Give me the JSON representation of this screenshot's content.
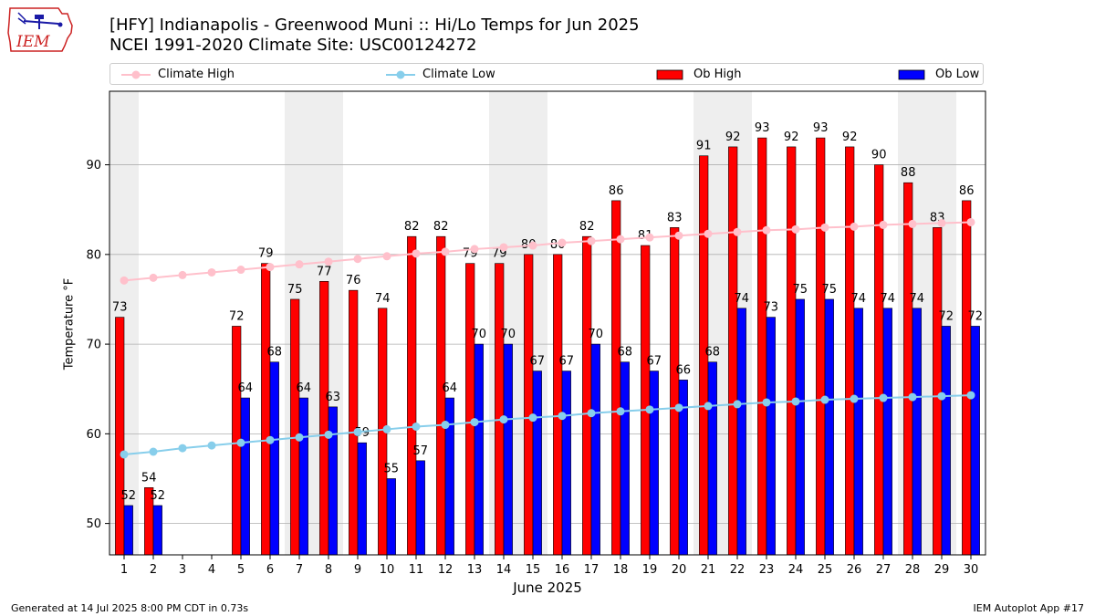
{
  "header": {
    "title_line1": "[HFY] Indianapolis - Greenwood Muni :: Hi/Lo Temps for Jun 2025",
    "title_line2": "NCEI 1991-2020 Climate Site: USC00124272",
    "logo_text": "IEM"
  },
  "footer": {
    "generated": "Generated at 14 Jul 2025 8:00 PM CDT in 0.73s",
    "app": "IEM Autoplot App #17"
  },
  "colors": {
    "climate_high": "#ffc0cb",
    "climate_low": "#87ceeb",
    "ob_high": "#ff0000",
    "ob_low": "#0000ff",
    "weekend_band": "#eeeeee",
    "grid": "#b0b0b0",
    "logo_red": "#cc2222",
    "logo_blue": "#1a1aa6"
  },
  "chart_data": {
    "type": "bar",
    "xlabel": "June 2025",
    "ylabel": "Temperature °F",
    "ylim": [
      46.5,
      98.2
    ],
    "yticks": [
      50,
      60,
      70,
      80,
      90
    ],
    "grid": "horizontal",
    "legend_position": "top",
    "categories": [
      1,
      2,
      3,
      4,
      5,
      6,
      7,
      8,
      9,
      10,
      11,
      12,
      13,
      14,
      15,
      16,
      17,
      18,
      19,
      20,
      21,
      22,
      23,
      24,
      25,
      26,
      27,
      28,
      29,
      30
    ],
    "weekend_days": [
      1,
      7,
      8,
      14,
      15,
      21,
      22,
      28,
      29
    ],
    "series": [
      {
        "name": "Climate High",
        "kind": "line",
        "values": [
          77.1,
          77.4,
          77.7,
          78.0,
          78.3,
          78.6,
          78.9,
          79.2,
          79.5,
          79.8,
          80.1,
          80.3,
          80.6,
          80.8,
          81.0,
          81.3,
          81.5,
          81.7,
          81.9,
          82.1,
          82.3,
          82.5,
          82.7,
          82.8,
          83.0,
          83.1,
          83.3,
          83.4,
          83.5,
          83.6
        ]
      },
      {
        "name": "Climate Low",
        "kind": "line",
        "values": [
          57.7,
          58.0,
          58.4,
          58.7,
          59.0,
          59.3,
          59.6,
          59.9,
          60.2,
          60.5,
          60.8,
          61.0,
          61.3,
          61.6,
          61.8,
          62.0,
          62.3,
          62.5,
          62.7,
          62.9,
          63.1,
          63.3,
          63.5,
          63.6,
          63.8,
          63.9,
          64.0,
          64.1,
          64.2,
          64.3
        ]
      },
      {
        "name": "Ob High",
        "kind": "bar",
        "values": [
          73,
          54,
          null,
          null,
          72,
          79,
          75,
          77,
          76,
          74,
          82,
          82,
          79,
          79,
          80,
          80,
          82,
          86,
          81,
          83,
          91,
          92,
          93,
          92,
          93,
          92,
          90,
          88,
          83,
          86
        ]
      },
      {
        "name": "Ob Low",
        "kind": "bar",
        "values": [
          52,
          52,
          null,
          null,
          64,
          68,
          64,
          63,
          59,
          55,
          57,
          64,
          70,
          70,
          67,
          67,
          70,
          68,
          67,
          66,
          68,
          74,
          73,
          75,
          75,
          74,
          74,
          74,
          72,
          72
        ]
      }
    ]
  }
}
